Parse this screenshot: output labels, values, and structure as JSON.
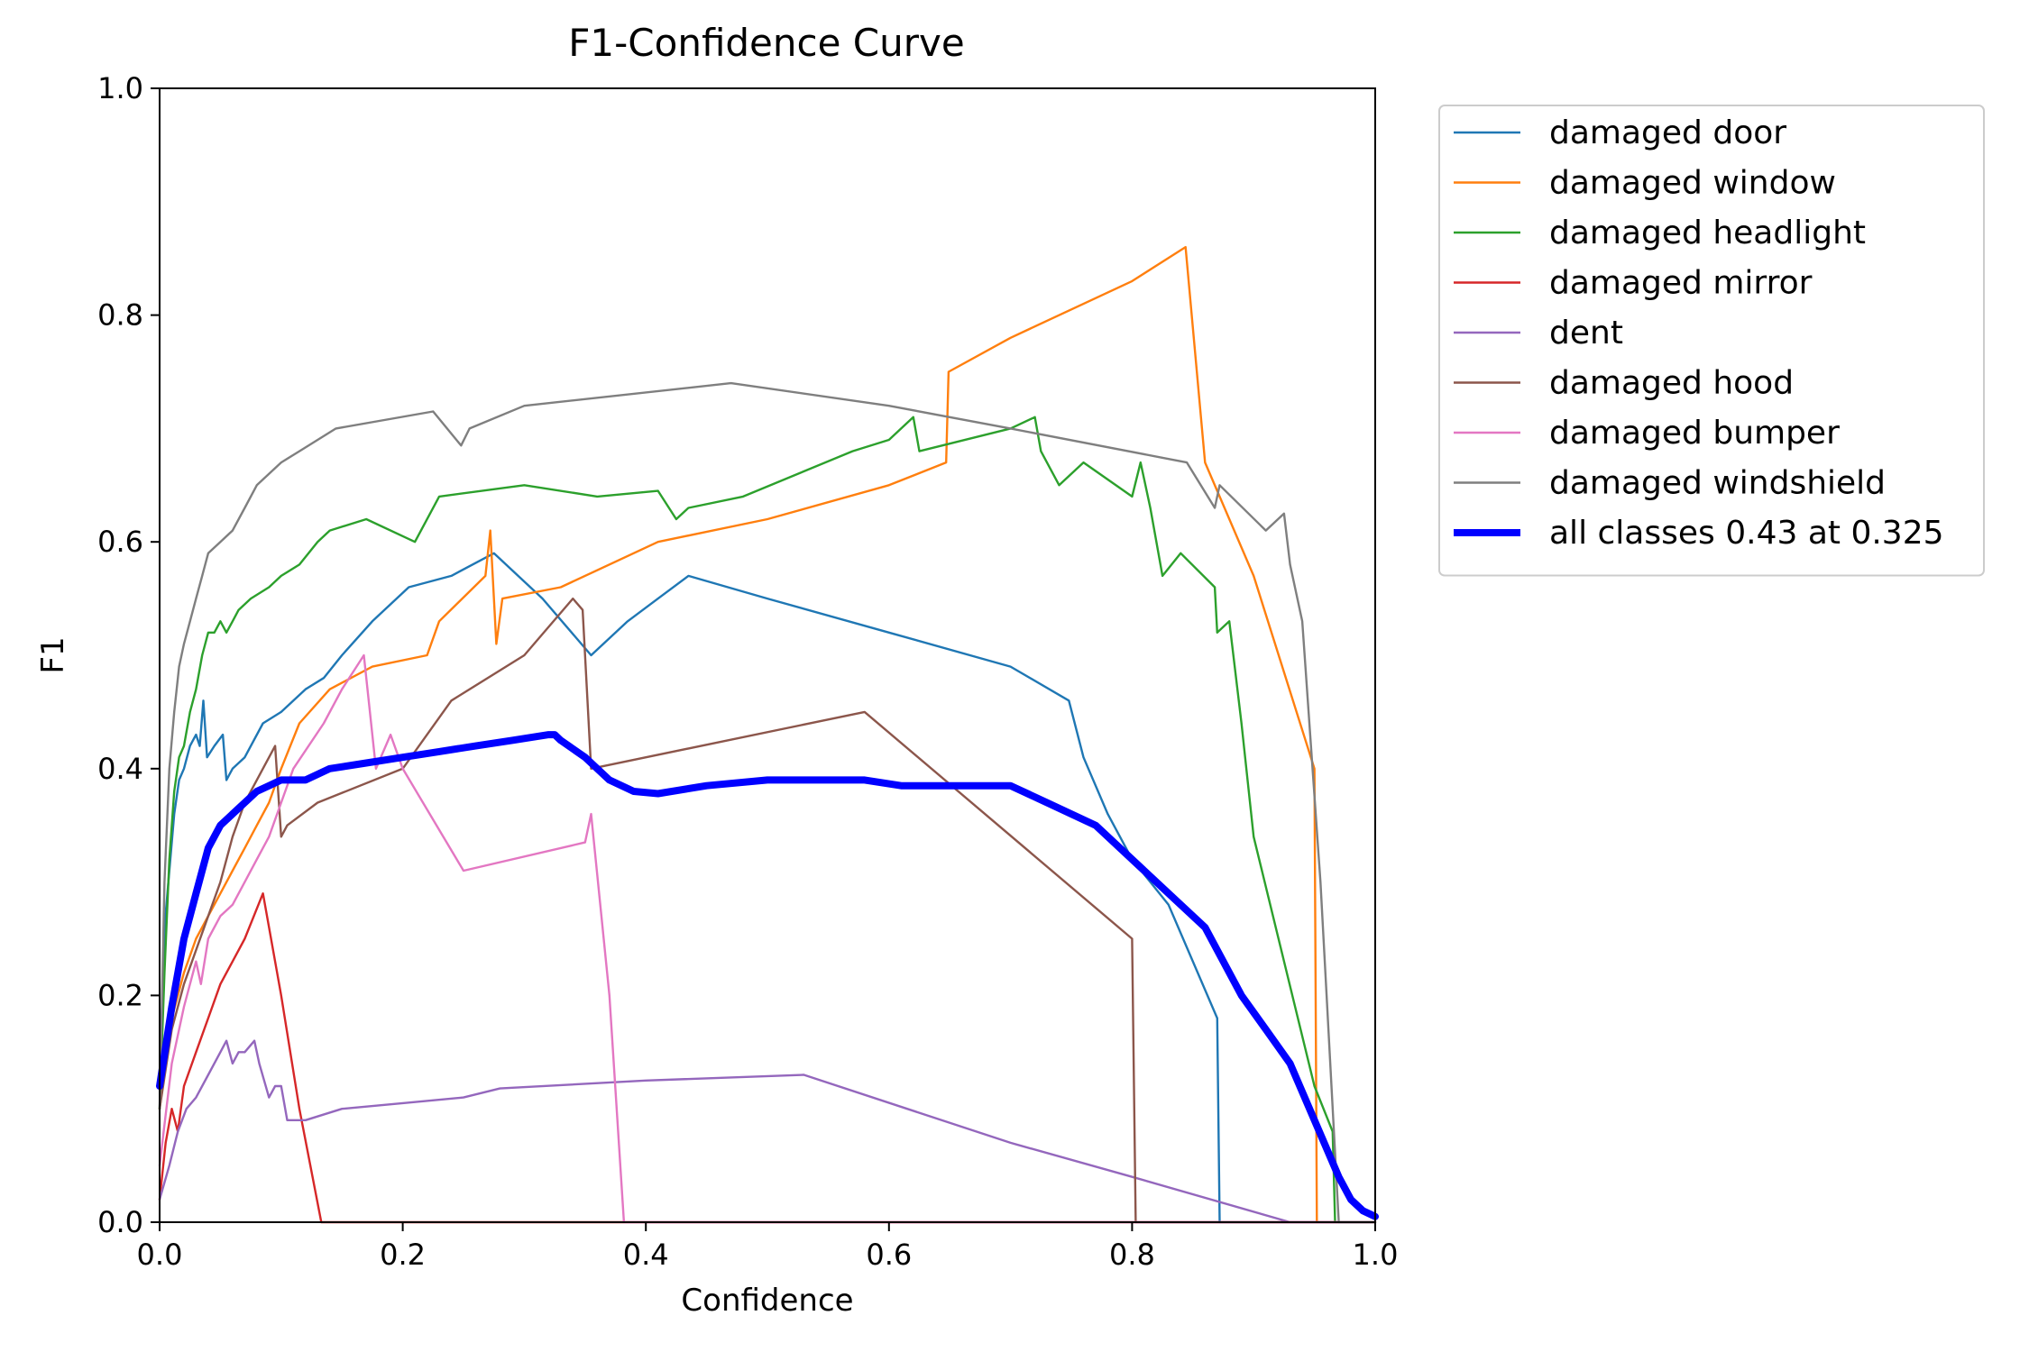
{
  "chart_data": {
    "type": "line",
    "title": "F1-Confidence Curve",
    "xlabel": "Confidence",
    "ylabel": "F1",
    "xlim": [
      0,
      1
    ],
    "ylim": [
      0,
      1
    ],
    "xticks": [
      "0.0",
      "0.2",
      "0.4",
      "0.6",
      "0.8",
      "1.0"
    ],
    "yticks": [
      "0.0",
      "0.2",
      "0.4",
      "0.6",
      "0.8",
      "1.0"
    ],
    "grid": false,
    "legend_position": "outside-right-top",
    "series": [
      {
        "name": "damaged door",
        "color": "#1f77b4",
        "x": [
          0,
          0.004,
          0.008,
          0.012,
          0.016,
          0.02,
          0.025,
          0.03,
          0.033,
          0.036,
          0.039,
          0.045,
          0.052,
          0.055,
          0.06,
          0.07,
          0.085,
          0.1,
          0.12,
          0.135,
          0.15,
          0.175,
          0.205,
          0.24,
          0.275,
          0.315,
          0.355,
          0.385,
          0.41,
          0.435,
          0.5,
          0.6,
          0.7,
          0.748,
          0.76,
          0.78,
          0.8,
          0.83,
          0.87,
          0.872,
          0.88,
          1.0
        ],
        "y": [
          0.12,
          0.26,
          0.31,
          0.36,
          0.39,
          0.4,
          0.42,
          0.43,
          0.42,
          0.46,
          0.41,
          0.42,
          0.43,
          0.39,
          0.4,
          0.41,
          0.44,
          0.45,
          0.47,
          0.48,
          0.5,
          0.53,
          0.56,
          0.57,
          0.59,
          0.55,
          0.5,
          0.53,
          0.55,
          0.57,
          0.55,
          0.52,
          0.49,
          0.46,
          0.41,
          0.36,
          0.32,
          0.28,
          0.18,
          0,
          0,
          0
        ]
      },
      {
        "name": "damaged window",
        "color": "#ff7f0e",
        "x": [
          0,
          0.01,
          0.02,
          0.03,
          0.04,
          0.05,
          0.06,
          0.07,
          0.08,
          0.09,
          0.1,
          0.115,
          0.14,
          0.175,
          0.22,
          0.23,
          0.268,
          0.272,
          0.277,
          0.282,
          0.33,
          0.41,
          0.5,
          0.6,
          0.647,
          0.649,
          0.7,
          0.8,
          0.844,
          0.86,
          0.9,
          0.95,
          0.952,
          0.96,
          1.0
        ],
        "y": [
          0.1,
          0.18,
          0.22,
          0.25,
          0.27,
          0.29,
          0.31,
          0.33,
          0.35,
          0.37,
          0.4,
          0.44,
          0.47,
          0.49,
          0.5,
          0.53,
          0.57,
          0.61,
          0.51,
          0.55,
          0.56,
          0.6,
          0.62,
          0.65,
          0.67,
          0.75,
          0.78,
          0.83,
          0.86,
          0.67,
          0.57,
          0.4,
          0,
          0,
          0
        ]
      },
      {
        "name": "damaged headlight",
        "color": "#2ca02c",
        "x": [
          0,
          0.004,
          0.008,
          0.012,
          0.016,
          0.02,
          0.025,
          0.03,
          0.035,
          0.04,
          0.045,
          0.05,
          0.055,
          0.06,
          0.065,
          0.075,
          0.09,
          0.1,
          0.115,
          0.13,
          0.14,
          0.17,
          0.21,
          0.23,
          0.3,
          0.36,
          0.41,
          0.425,
          0.435,
          0.48,
          0.57,
          0.6,
          0.62,
          0.625,
          0.7,
          0.72,
          0.725,
          0.74,
          0.76,
          0.8,
          0.807,
          0.815,
          0.825,
          0.84,
          0.868,
          0.87,
          0.88,
          0.89,
          0.9,
          0.95,
          0.965,
          0.967,
          1.0
        ],
        "y": [
          0.1,
          0.22,
          0.32,
          0.38,
          0.41,
          0.42,
          0.45,
          0.47,
          0.5,
          0.52,
          0.52,
          0.53,
          0.52,
          0.53,
          0.54,
          0.55,
          0.56,
          0.57,
          0.58,
          0.6,
          0.61,
          0.62,
          0.6,
          0.64,
          0.65,
          0.64,
          0.645,
          0.62,
          0.63,
          0.64,
          0.68,
          0.69,
          0.71,
          0.68,
          0.7,
          0.71,
          0.68,
          0.65,
          0.67,
          0.64,
          0.67,
          0.63,
          0.57,
          0.59,
          0.56,
          0.52,
          0.53,
          0.44,
          0.34,
          0.12,
          0.08,
          0,
          0
        ]
      },
      {
        "name": "damaged mirror",
        "color": "#d62728",
        "x": [
          0,
          0.005,
          0.01,
          0.015,
          0.02,
          0.03,
          0.04,
          0.05,
          0.06,
          0.07,
          0.085,
          0.1,
          0.115,
          0.133,
          0.14,
          1.0
        ],
        "y": [
          0.02,
          0.07,
          0.1,
          0.08,
          0.12,
          0.15,
          0.18,
          0.21,
          0.23,
          0.25,
          0.29,
          0.2,
          0.1,
          0,
          0,
          0
        ]
      },
      {
        "name": "dent",
        "color": "#9467bd",
        "x": [
          0,
          0.008,
          0.015,
          0.022,
          0.03,
          0.04,
          0.05,
          0.055,
          0.06,
          0.065,
          0.07,
          0.078,
          0.082,
          0.09,
          0.095,
          0.1,
          0.105,
          0.11,
          0.12,
          0.15,
          0.2,
          0.25,
          0.28,
          0.4,
          0.53,
          0.7,
          0.8,
          0.93,
          1.0
        ],
        "y": [
          0.02,
          0.05,
          0.08,
          0.1,
          0.11,
          0.13,
          0.15,
          0.16,
          0.14,
          0.15,
          0.15,
          0.16,
          0.14,
          0.11,
          0.12,
          0.12,
          0.09,
          0.09,
          0.09,
          0.1,
          0.105,
          0.11,
          0.118,
          0.125,
          0.13,
          0.07,
          0.04,
          0,
          0
        ]
      },
      {
        "name": "damaged hood",
        "color": "#8c564b",
        "x": [
          0,
          0.01,
          0.02,
          0.03,
          0.04,
          0.05,
          0.06,
          0.07,
          0.08,
          0.095,
          0.1,
          0.105,
          0.13,
          0.2,
          0.24,
          0.3,
          0.34,
          0.348,
          0.355,
          0.58,
          0.8,
          0.803,
          1.0
        ],
        "y": [
          0.1,
          0.17,
          0.21,
          0.24,
          0.27,
          0.3,
          0.34,
          0.37,
          0.39,
          0.42,
          0.34,
          0.35,
          0.37,
          0.4,
          0.46,
          0.5,
          0.55,
          0.54,
          0.4,
          0.45,
          0.25,
          0,
          0
        ]
      },
      {
        "name": "damaged bumper",
        "color": "#e377c2",
        "x": [
          0,
          0.01,
          0.02,
          0.03,
          0.034,
          0.04,
          0.05,
          0.06,
          0.07,
          0.08,
          0.09,
          0.1,
          0.11,
          0.135,
          0.15,
          0.168,
          0.178,
          0.19,
          0.2,
          0.25,
          0.35,
          0.355,
          0.37,
          0.382,
          0.39,
          1.0
        ],
        "y": [
          0.05,
          0.14,
          0.19,
          0.23,
          0.21,
          0.25,
          0.27,
          0.28,
          0.3,
          0.32,
          0.34,
          0.37,
          0.4,
          0.44,
          0.47,
          0.5,
          0.4,
          0.43,
          0.4,
          0.31,
          0.335,
          0.36,
          0.2,
          0,
          0,
          0
        ]
      },
      {
        "name": "damaged windshield",
        "color": "#7f7f7f",
        "x": [
          0,
          0.004,
          0.008,
          0.012,
          0.016,
          0.02,
          0.025,
          0.03,
          0.035,
          0.04,
          0.05,
          0.06,
          0.07,
          0.08,
          0.1,
          0.115,
          0.145,
          0.225,
          0.248,
          0.255,
          0.3,
          0.47,
          0.6,
          0.7,
          0.845,
          0.868,
          0.872,
          0.91,
          0.925,
          0.93,
          0.94,
          0.955,
          0.96,
          0.97,
          1.0
        ],
        "y": [
          0.1,
          0.3,
          0.4,
          0.45,
          0.49,
          0.51,
          0.53,
          0.55,
          0.57,
          0.59,
          0.6,
          0.61,
          0.63,
          0.65,
          0.67,
          0.68,
          0.7,
          0.715,
          0.685,
          0.7,
          0.72,
          0.74,
          0.72,
          0.7,
          0.67,
          0.63,
          0.65,
          0.61,
          0.625,
          0.58,
          0.53,
          0.3,
          0.2,
          0,
          0
        ]
      },
      {
        "name": "all classes 0.43 at 0.325",
        "color": "#0000ff",
        "bold": true,
        "x": [
          0,
          0.01,
          0.02,
          0.03,
          0.04,
          0.05,
          0.06,
          0.07,
          0.08,
          0.09,
          0.1,
          0.12,
          0.14,
          0.17,
          0.2,
          0.23,
          0.26,
          0.29,
          0.32,
          0.325,
          0.33,
          0.35,
          0.37,
          0.39,
          0.41,
          0.45,
          0.5,
          0.55,
          0.58,
          0.61,
          0.64,
          0.67,
          0.7,
          0.73,
          0.77,
          0.8,
          0.83,
          0.86,
          0.89,
          0.91,
          0.93,
          0.95,
          0.97,
          0.98,
          0.99,
          1.0
        ],
        "y": [
          0.12,
          0.19,
          0.25,
          0.29,
          0.33,
          0.35,
          0.36,
          0.37,
          0.38,
          0.385,
          0.39,
          0.39,
          0.4,
          0.405,
          0.41,
          0.415,
          0.42,
          0.425,
          0.43,
          0.43,
          0.425,
          0.41,
          0.39,
          0.38,
          0.378,
          0.385,
          0.39,
          0.39,
          0.39,
          0.385,
          0.385,
          0.385,
          0.385,
          0.37,
          0.35,
          0.32,
          0.29,
          0.26,
          0.2,
          0.17,
          0.14,
          0.09,
          0.04,
          0.02,
          0.01,
          0.005
        ]
      }
    ]
  }
}
